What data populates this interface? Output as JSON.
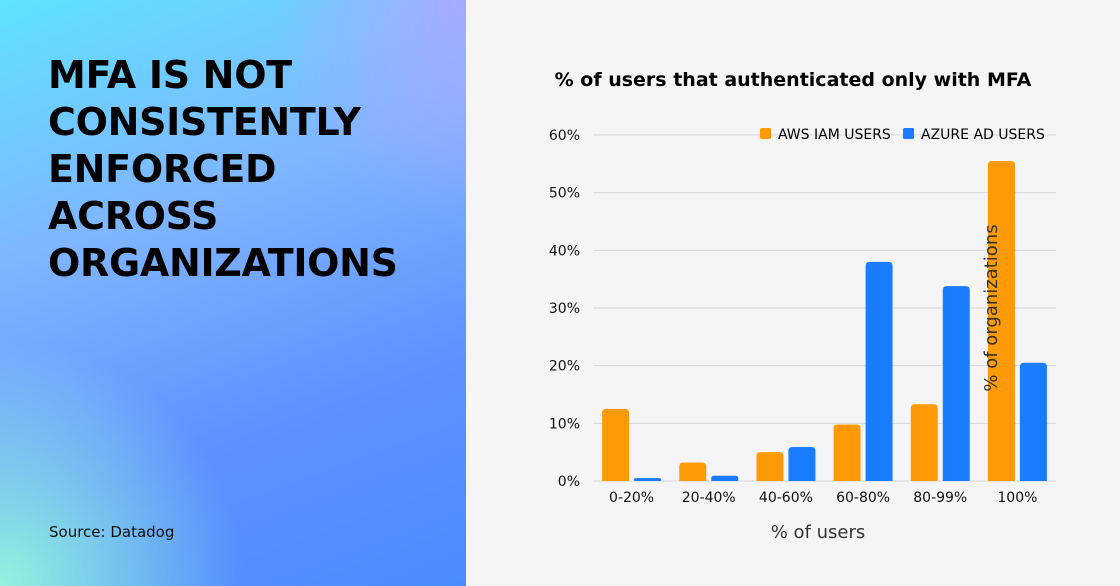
{
  "headline": "MFA IS NOT\nCONSISTENTLY\nENFORCED\nACROSS\nORGANIZATIONS",
  "source": "Source: Datadog",
  "colors": {
    "aws": "#ff9a07",
    "azure": "#1a7cff",
    "grid": "#d6d6dc",
    "text": "#111111"
  },
  "chart_data": {
    "type": "bar",
    "title": "% of users that authenticated only with MFA",
    "xlabel": "% of users",
    "ylabel": "% of organizations",
    "categories": [
      "0-20%",
      "20-40%",
      "40-60%",
      "60-80%",
      "80-99%",
      "100%"
    ],
    "ylim": [
      0,
      60
    ],
    "yticks": [
      0,
      10,
      20,
      30,
      40,
      50,
      60
    ],
    "ytick_labels": [
      "0%",
      "10%",
      "20%",
      "30%",
      "40%",
      "50%",
      "60%"
    ],
    "grid": true,
    "legend_position": "top-right",
    "series": [
      {
        "name": "AWS IAM USERS",
        "color": "#ff9a07",
        "values": [
          12.5,
          3.2,
          5.0,
          9.8,
          13.3,
          55.5
        ]
      },
      {
        "name": "AZURE AD USERS",
        "color": "#1a7cff",
        "values": [
          0.5,
          0.9,
          5.9,
          38.0,
          33.8,
          20.5
        ]
      }
    ]
  }
}
